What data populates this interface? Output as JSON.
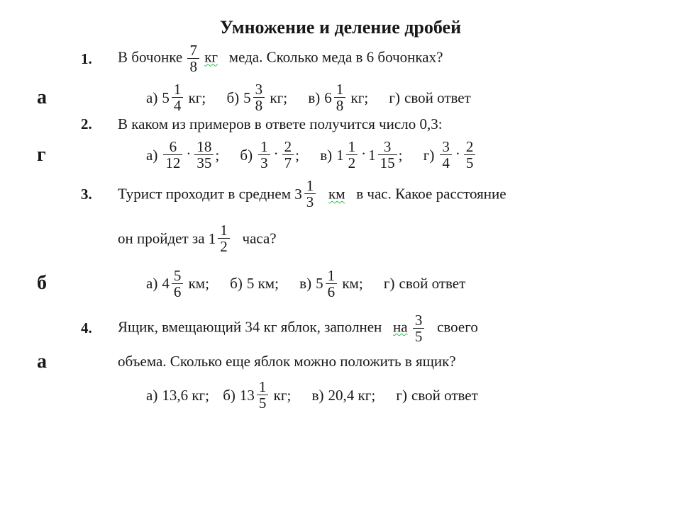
{
  "title": "Умножение и деление дробей",
  "answers": {
    "q1": "а",
    "q2": "г",
    "q3": "б",
    "q4": "а"
  },
  "q1": {
    "num": "1.",
    "text_before": "В бочонке",
    "frac": {
      "n": "7",
      "d": "8"
    },
    "text_after_1": "кг",
    "text_after_2": "меда. Сколько меда в 6 бочонках?",
    "opts": {
      "a_lbl": "а)",
      "a_whole": "5",
      "a_n": "1",
      "a_d": "4",
      "a_unit": "кг;",
      "b_lbl": "б)",
      "b_whole": "5",
      "b_n": "3",
      "b_d": "8",
      "b_unit": "кг;",
      "v_lbl": "в)",
      "v_whole": "6",
      "v_n": "1",
      "v_d": "8",
      "v_unit": "кг;",
      "g_lbl": "г)",
      "g_text": "свой ответ"
    }
  },
  "q2": {
    "num": "2.",
    "text": "В каком из примеров в ответе получится число 0,3:",
    "opts": {
      "a_lbl": "а)",
      "a_f1n": "6",
      "a_f1d": "12",
      "a_f2n": "18",
      "a_f2d": "35",
      "a_tail": ";",
      "b_lbl": "б)",
      "b_f1n": "1",
      "b_f1d": "3",
      "b_f2n": "2",
      "b_f2d": "7",
      "b_tail": ";",
      "v_lbl": "в)",
      "v_w1": "1",
      "v_f1n": "1",
      "v_f1d": "2",
      "v_w2": "1",
      "v_f2n": "3",
      "v_f2d": "15",
      "v_tail": ";",
      "g_lbl": "г)",
      "g_f1n": "3",
      "g_f1d": "4",
      "g_f2n": "2",
      "g_f2d": "5"
    }
  },
  "q3": {
    "num": "3.",
    "line1_before": "Турист проходит в среднем",
    "line1_whole": "3",
    "line1_n": "1",
    "line1_d": "3",
    "line1_unit": "км",
    "line1_after": "в час. Какое расстояние",
    "line2_before": "он пройдет за",
    "line2_whole": "1",
    "line2_n": "1",
    "line2_d": "2",
    "line2_after": "часа?",
    "opts": {
      "a_lbl": "а)",
      "a_whole": "4",
      "a_n": "5",
      "a_d": "6",
      "a_unit": "км;",
      "b_lbl": "б)",
      "b_text": "5 км;",
      "v_lbl": "в)",
      "v_whole": "5",
      "v_n": "1",
      "v_d": "6",
      "v_unit": "км;",
      "g_lbl": "г)",
      "g_text": "свой ответ"
    }
  },
  "q4": {
    "num": "4.",
    "line1_before": "Ящик, вмещающий 34 кг яблок, заполнен",
    "line1_wavy": "на",
    "line1_n": "3",
    "line1_d": "5",
    "line1_after": "своего",
    "line2": "объема. Сколько еще яблок можно положить в ящик?",
    "opts": {
      "a_lbl": "а)",
      "a_text": "13,6 кг;",
      "b_lbl": "б)",
      "b_whole": "13",
      "b_n": "1",
      "b_d": "5",
      "b_unit": "кг;",
      "v_lbl": "в)",
      "v_text": "20,4 кг;",
      "g_lbl": "г)",
      "g_text": "свой ответ"
    }
  }
}
